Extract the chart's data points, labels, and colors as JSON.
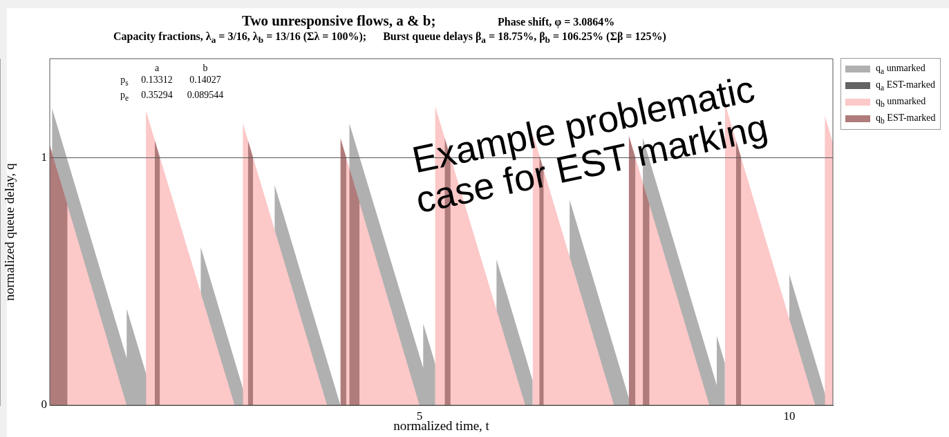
{
  "chart_data": {
    "type": "area",
    "title": "Two unresponsive flows, a & b;",
    "subtitle": "Capacity fractions, λ$_{a}$ = 3/16, λ$_{b}$ = 13/16 (Σλ = 100%);      Burst queue delays β$_{a}$ = 18.75%, β$_{b}$ = 106.25% (Σβ = 125%)",
    "xlabel": "normalized time, t",
    "ylabel": "normalized queue delay, q",
    "annotations": [
      "Phase shift, φ = 3.0864%",
      "a",
      "b",
      "p$_{s}$",
      "0.13312",
      "0.14027",
      "p$_{e}$",
      "0.35294",
      "0.089544",
      "Example problematic case for EST marking"
    ],
    "xlim": [
      0,
      10.59
    ],
    "xticks": [
      5,
      10
    ],
    "ylim": [
      0,
      1.4
    ],
    "yticks": [
      0,
      1
    ],
    "grid": "y",
    "legend": "right",
    "marker": "none",
    "series": [
      {
        "name": "q$_{a}$ unmarked",
        "color": "#b0b0b0",
        "x": [
          0.03,
          0.03,
          1.04,
          1.04,
          1.3,
          1.3,
          null,
          2.04,
          2.04,
          2.61,
          2.61,
          null,
          3.04,
          3.04,
          3.93,
          null,
          4.05,
          4.05,
          5.05,
          5.05,
          5.21,
          5.21,
          null,
          6.04,
          6.04,
          6.53,
          6.53,
          null,
          7.03,
          7.03,
          7.86,
          null,
          8.02,
          8.02,
          9.02,
          9.02,
          9.13,
          9.13,
          null,
          10.0,
          10.0,
          10.48,
          10.48
        ],
        "values": [
          0,
          1.2,
          0.19,
          0.39,
          0.13,
          0,
          null,
          0,
          0.64,
          0.07,
          0,
          null,
          0,
          0.89,
          0,
          null,
          0,
          1.14,
          0.15,
          0.33,
          0.17,
          0,
          null,
          0,
          0.59,
          0.1,
          0,
          null,
          0,
          0.83,
          0,
          null,
          0,
          1.08,
          0.08,
          0.28,
          0.17,
          0,
          null,
          0,
          0.53,
          0.05,
          0
        ]
      },
      {
        "name": "q$_{a}$ EST-marked",
        "color": "#646464",
        "x": [
          1.3,
          1.3,
          1.43,
          null,
          2.61,
          2.61,
          2.68,
          null,
          5.21,
          5.21,
          5.37,
          null,
          6.53,
          6.53,
          6.63,
          null,
          9.13,
          9.13,
          9.3,
          null,
          10.48,
          10.48,
          10.53
        ],
        "values": [
          0,
          0.13,
          0,
          null,
          0,
          0.07,
          0,
          null,
          0,
          0.17,
          0,
          null,
          0,
          0.1,
          0,
          null,
          0,
          0.17,
          0,
          null,
          0,
          0.05,
          0
        ]
      },
      {
        "name": "q$_{b}$ unmarked",
        "color": "#fcc8c8",
        "x": [
          0,
          0,
          1.04,
          null,
          1.3,
          1.3,
          2.5,
          null,
          2.61,
          2.61,
          3.75,
          null,
          3.93,
          3.93,
          5.0,
          null,
          5.21,
          5.21,
          6.43,
          null,
          6.53,
          6.53,
          7.63,
          null,
          7.83,
          7.83,
          8.92,
          null,
          9.13,
          9.13,
          10.35,
          null,
          10.48,
          10.48,
          10.59
        ],
        "values": [
          0,
          1.05,
          0,
          null,
          0,
          1.19,
          0,
          null,
          0,
          1.14,
          0,
          null,
          0,
          1.08,
          0,
          null,
          0,
          1.21,
          0,
          null,
          0,
          1.1,
          0,
          null,
          0,
          1.09,
          0,
          null,
          0,
          1.22,
          0,
          null,
          0,
          1.17,
          1.06
        ]
      },
      {
        "name": "q$_{b}$ EST-marked",
        "color": "#b07b7b",
        "x": [
          0,
          0,
          0.24,
          0.24,
          null,
          1.42,
          1.42,
          1.49,
          1.49,
          null,
          2.68,
          2.68,
          2.75,
          2.75,
          null,
          3.93,
          3.93,
          4.01,
          4.01,
          null,
          4.05,
          4.05,
          4.19,
          4.19,
          null,
          5.34,
          5.34,
          5.42,
          5.42,
          null,
          6.62,
          6.62,
          6.68,
          6.68,
          null,
          7.83,
          7.83,
          7.92,
          7.92,
          null,
          8.02,
          8.02,
          8.11,
          8.11,
          null,
          9.28,
          9.28,
          9.35,
          9.35
        ],
        "values": [
          0,
          1.05,
          0.81,
          0,
          null,
          0,
          1.07,
          1.0,
          0,
          null,
          0,
          1.07,
          1.0,
          0,
          null,
          0,
          1.08,
          1.0,
          0,
          null,
          0,
          0.96,
          0.82,
          0,
          null,
          0,
          1.08,
          1.0,
          0,
          null,
          0,
          1.01,
          0.95,
          0,
          null,
          0,
          1.09,
          1.0,
          0,
          null,
          0,
          0.9,
          0.81,
          0,
          null,
          0,
          1.07,
          1.0,
          0
        ]
      }
    ]
  }
}
